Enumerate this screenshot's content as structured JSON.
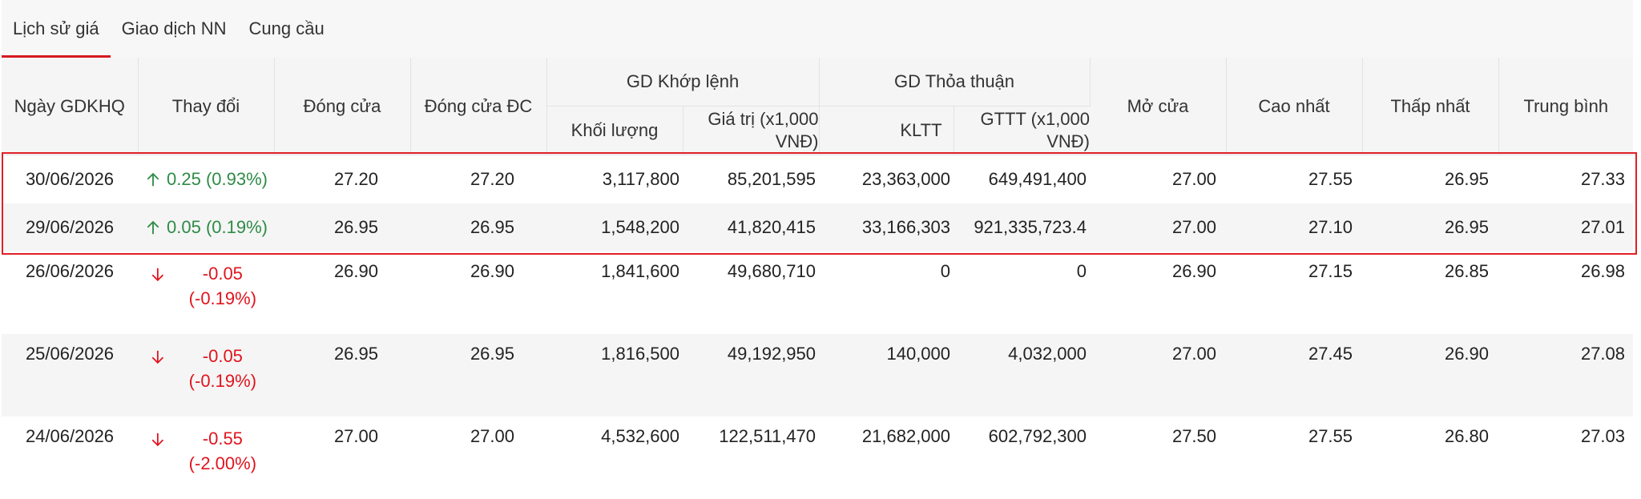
{
  "tabs": [
    "Lịch sử giá",
    "Giao dịch NN",
    "Cung cầu"
  ],
  "headers": {
    "date": "Ngày GDKHQ",
    "change": "Thay đổi",
    "close": "Đóng cửa",
    "close_adj": "Đóng cửa ĐC",
    "group_match": "GD Khớp lệnh",
    "match_volume": "Khối lượng",
    "match_value_line1": "Giá trị (x1,000",
    "match_value_line2": "VNĐ)",
    "group_deal": "GD Thỏa thuận",
    "deal_volume": "KLTT",
    "deal_value_line1": "GTTT (x1,000",
    "deal_value_line2": "VNĐ)",
    "open": "Mở cửa",
    "high": "Cao nhất",
    "low": "Thấp nhất",
    "average": "Trung bình"
  },
  "rows": [
    {
      "date": "30/06/2026",
      "direction": "up",
      "change": "0.25 (0.93%)",
      "change_abs": "",
      "change_pct": "",
      "close": "27.20",
      "close_adj": "27.20",
      "match_volume": "3,117,800",
      "match_value": "85,201,595",
      "deal_volume": "23,363,000",
      "deal_value": "649,491,400",
      "open": "27.00",
      "high": "27.55",
      "low": "26.95",
      "average": "27.33"
    },
    {
      "date": "29/06/2026",
      "direction": "up",
      "change": "0.05 (0.19%)",
      "change_abs": "",
      "change_pct": "",
      "close": "26.95",
      "close_adj": "26.95",
      "match_volume": "1,548,200",
      "match_value": "41,820,415",
      "deal_volume": "33,166,303",
      "deal_value": "921,335,723.4",
      "open": "27.00",
      "high": "27.10",
      "low": "26.95",
      "average": "27.01"
    },
    {
      "date": "26/06/2026",
      "direction": "down",
      "change": "",
      "change_abs": "-0.05",
      "change_pct": "(-0.19%)",
      "close": "26.90",
      "close_adj": "26.90",
      "match_volume": "1,841,600",
      "match_value": "49,680,710",
      "deal_volume": "0",
      "deal_value": "0",
      "open": "26.90",
      "high": "27.15",
      "low": "26.85",
      "average": "26.98"
    },
    {
      "date": "25/06/2026",
      "direction": "down",
      "change": "",
      "change_abs": "-0.05",
      "change_pct": "(-0.19%)",
      "close": "26.95",
      "close_adj": "26.95",
      "match_volume": "1,816,500",
      "match_value": "49,192,950",
      "deal_volume": "140,000",
      "deal_value": "4,032,000",
      "open": "27.00",
      "high": "27.45",
      "low": "26.90",
      "average": "27.08"
    },
    {
      "date": "24/06/2026",
      "direction": "down",
      "change": "",
      "change_abs": "-0.55",
      "change_pct": "(-2.00%)",
      "close": "27.00",
      "close_adj": "27.00",
      "match_volume": "4,532,600",
      "match_value": "122,511,470",
      "deal_volume": "21,682,000",
      "deal_value": "602,792,300",
      "open": "27.50",
      "high": "27.55",
      "low": "26.80",
      "average": "27.03"
    }
  ],
  "colors": {
    "up": "#2e8b47",
    "down": "#e0141e",
    "accent": "#d71920"
  },
  "icons": {
    "up": "arrow-up-icon",
    "down": "arrow-down-icon"
  }
}
